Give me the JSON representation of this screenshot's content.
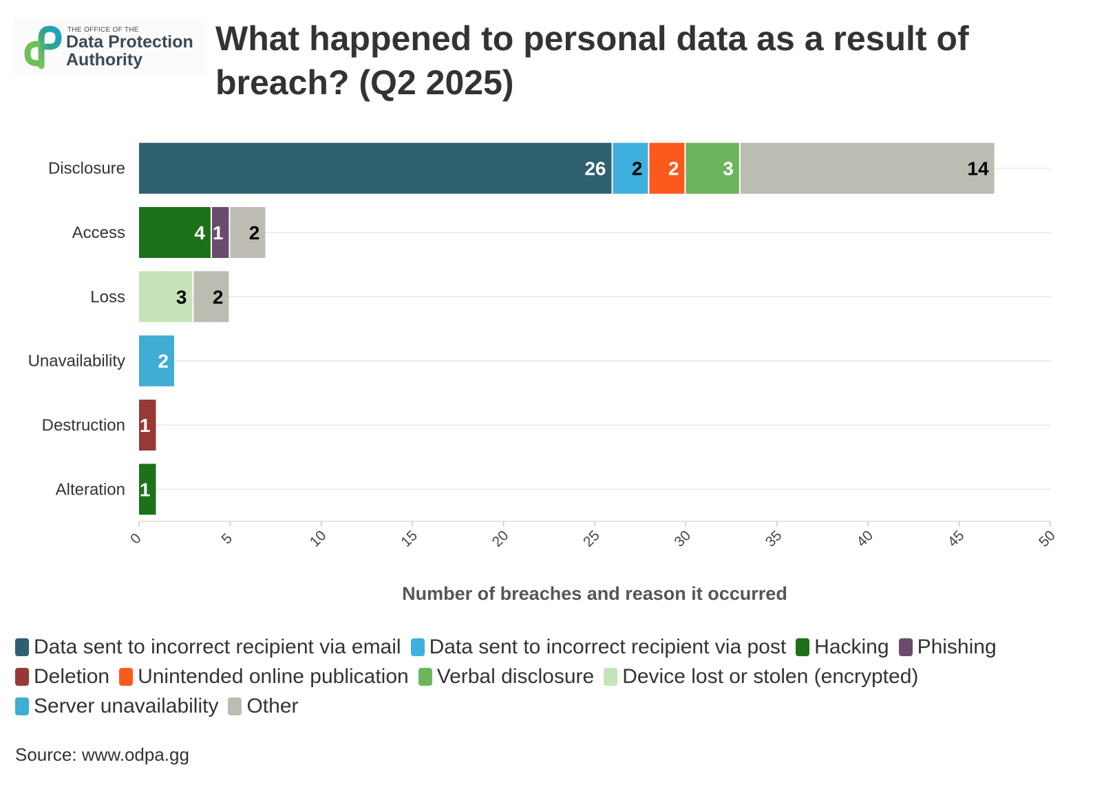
{
  "logo": {
    "small_text": "THE OFFICE OF THE",
    "name": "Data Protection Authority"
  },
  "title": "What happened to personal data as a result of breach? (Q2 2025)",
  "source": "Source: www.odpa.gg",
  "chart_data": {
    "type": "bar",
    "orientation": "horizontal",
    "stacked": true,
    "title": "What happened to personal data as a result of breach? (Q2 2025)",
    "xlabel": "Number of breaches and reason it occurred",
    "ylabel": "",
    "xlim": [
      0,
      50
    ],
    "xticks": [
      "0",
      "5",
      "10",
      "15",
      "20",
      "25",
      "30",
      "35",
      "40",
      "45",
      "50"
    ],
    "grid": true,
    "legend_position": "bottom",
    "categories": [
      "Disclosure",
      "Access",
      "Loss",
      "Unavailability",
      "Destruction",
      "Alteration"
    ],
    "series": [
      {
        "name": "Data sent to incorrect recipient via email",
        "color": "#2e6070",
        "label_color": "#ffffff",
        "values": [
          26,
          0,
          0,
          0,
          0,
          0
        ]
      },
      {
        "name": "Data sent to incorrect recipient via post",
        "color": "#3fb0e0",
        "label_color": "#000000",
        "values": [
          2,
          0,
          0,
          0,
          0,
          0
        ]
      },
      {
        "name": "Hacking",
        "color": "#1d7118",
        "label_color": "#ffffff",
        "values": [
          0,
          4,
          0,
          0,
          0,
          1
        ]
      },
      {
        "name": "Phishing",
        "color": "#6a4b6e",
        "label_color": "#ffffff",
        "values": [
          0,
          1,
          0,
          0,
          0,
          0
        ]
      },
      {
        "name": "Deletion",
        "color": "#983933",
        "label_color": "#ffffff",
        "values": [
          0,
          0,
          0,
          0,
          1,
          0
        ]
      },
      {
        "name": "Unintended online publication",
        "color": "#fc5a1c",
        "label_color": "#ffffff",
        "values": [
          2,
          0,
          0,
          0,
          0,
          0
        ]
      },
      {
        "name": "Verbal disclosure",
        "color": "#6db55c",
        "label_color": "#ffffff",
        "values": [
          3,
          0,
          0,
          0,
          0,
          0
        ]
      },
      {
        "name": "Device lost or stolen (encrypted)",
        "color": "#c5e3b8",
        "label_color": "#000000",
        "values": [
          0,
          0,
          3,
          0,
          0,
          0
        ]
      },
      {
        "name": "Server unavailability",
        "color": "#3fadd4",
        "label_color": "#ffffff",
        "values": [
          0,
          0,
          0,
          2,
          0,
          0
        ]
      },
      {
        "name": "Other",
        "color": "#bcbcb3",
        "label_color": "#000000",
        "values": [
          14,
          2,
          2,
          0,
          0,
          0
        ]
      }
    ]
  }
}
